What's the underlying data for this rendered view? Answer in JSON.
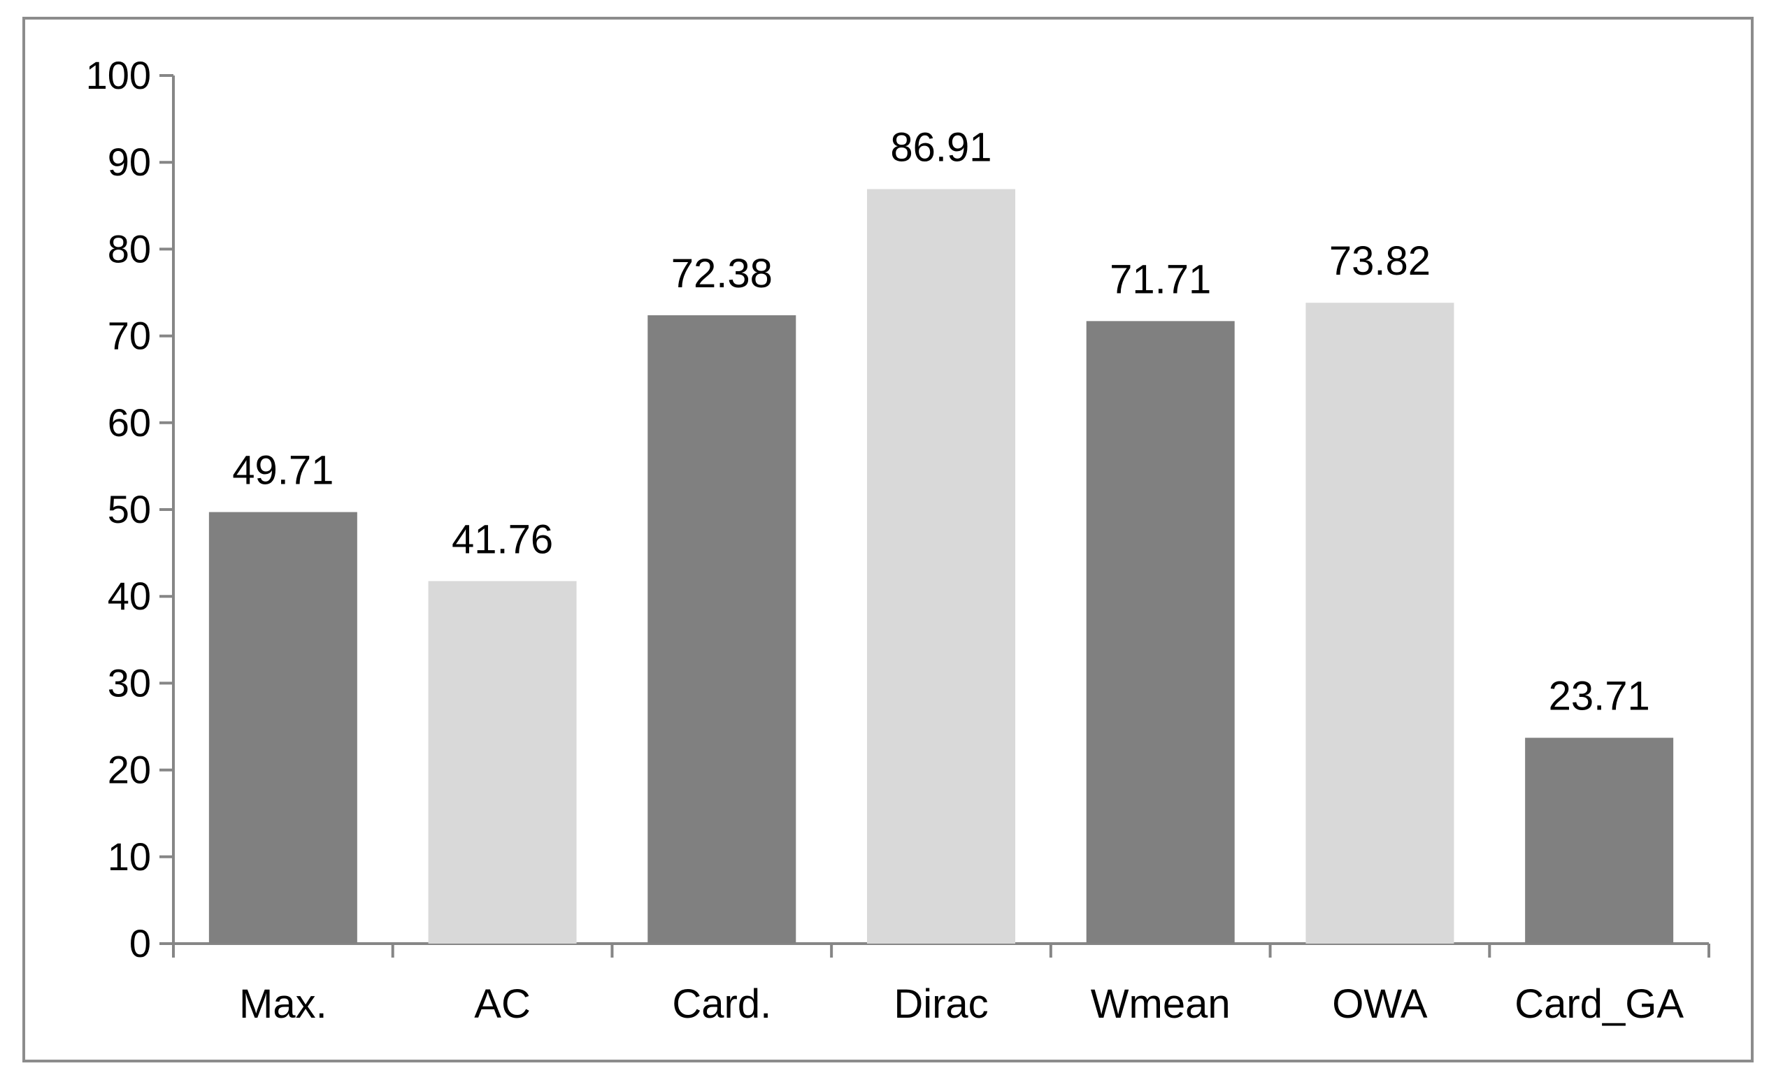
{
  "chart_data": {
    "type": "bar",
    "title": "",
    "xlabel": "",
    "ylabel": "",
    "categories": [
      "Max.",
      "AC",
      "Card.",
      "Dirac",
      "Wmean",
      "OWA",
      "Card_GA"
    ],
    "values": [
      49.71,
      41.76,
      72.38,
      86.91,
      71.71,
      73.82,
      23.71
    ],
    "value_labels": [
      "49.71",
      "41.76",
      "72.38",
      "86.91",
      "71.71",
      "73.82",
      "23.71"
    ],
    "ylim": [
      0,
      100
    ],
    "yticks": [
      0,
      10,
      20,
      30,
      40,
      50,
      60,
      70,
      80,
      90,
      100
    ],
    "ytick_labels": [
      "0",
      "10",
      "20",
      "30",
      "40",
      "50",
      "60",
      "70",
      "80",
      "90",
      "100"
    ],
    "grid": false,
    "legend": "none",
    "colors": {
      "dark_bar": "#808080",
      "light_bar": "#d9d9d9",
      "axis": "#868686",
      "frame": "#8c8c8c",
      "text": "#000000"
    },
    "bar_color_pattern": [
      "dark",
      "light",
      "dark",
      "light",
      "dark",
      "light",
      "dark"
    ]
  }
}
